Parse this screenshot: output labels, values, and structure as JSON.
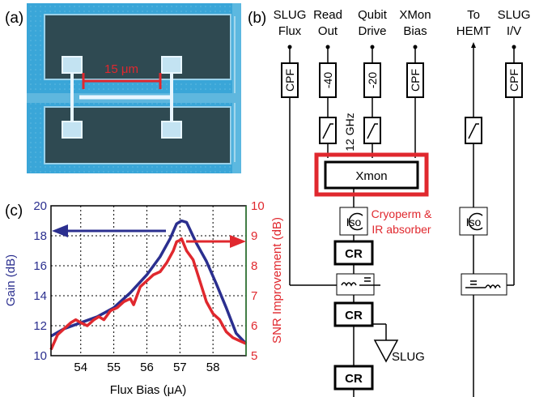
{
  "panels": {
    "a": {
      "label": "(a)",
      "scalebar": "15 μm"
    },
    "b": {
      "label": "(b)",
      "lines": [
        {
          "l1": "SLUG",
          "l2": "Flux",
          "comp": "CPF"
        },
        {
          "l1": "Read",
          "l2": "Out",
          "comp": "-40"
        },
        {
          "l1": "Qubit",
          "l2": "Drive",
          "comp": "-20"
        },
        {
          "l1": "XMon",
          "l2": "Bias",
          "comp": "CPF"
        },
        {
          "l1": "To",
          "l2": "HEMT",
          "comp": ""
        },
        {
          "l1": "SLUG",
          "l2": "I/V",
          "comp": "CPF"
        }
      ],
      "ghz": "12 GHz",
      "xmon": "Xmon",
      "iso": "Iso",
      "shield_l1": "Cryoperm &",
      "shield_l2": "IR absorber",
      "cr": "CR",
      "slug": "SLUG"
    },
    "c": {
      "label": "(c)"
    }
  },
  "colors": {
    "gain": "#2b2f8f",
    "snr": "#e0282e",
    "shield": "#e0282e",
    "chip_bg": "#3aa6d8",
    "chip_metal": "#2f4a52"
  },
  "chart_data": {
    "type": "line",
    "xlabel": "Flux Bias (μA)",
    "ylabel": "Gain (dB)",
    "y2label": "SNR Improvement (dB)",
    "xlim": [
      53.1,
      59.0
    ],
    "ylim": [
      10,
      20
    ],
    "y2lim": [
      5,
      10
    ],
    "xticks": [
      "54",
      "55",
      "56",
      "57",
      "58"
    ],
    "yticks": [
      "10",
      "12",
      "14",
      "16",
      "18",
      "20"
    ],
    "y2ticks": [
      "5",
      "6",
      "7",
      "8",
      "9",
      "10"
    ],
    "grid": true,
    "series": [
      {
        "axis": "left",
        "x": [
          53.1,
          53.5,
          54.0,
          54.5,
          55.0,
          55.5,
          56.0,
          56.4,
          56.7,
          56.9,
          57.05,
          57.2,
          57.5,
          57.8,
          58.1,
          58.4,
          58.7,
          59.0
        ],
        "y": [
          11.3,
          11.8,
          12.2,
          12.6,
          13.2,
          14.2,
          15.4,
          16.6,
          17.8,
          18.8,
          19.0,
          18.9,
          17.5,
          16.3,
          14.8,
          13.2,
          11.5,
          10.8
        ]
      },
      {
        "axis": "right",
        "x": [
          53.1,
          53.3,
          53.5,
          53.7,
          53.85,
          54.0,
          54.2,
          54.4,
          54.55,
          54.7,
          54.9,
          55.1,
          55.3,
          55.5,
          55.6,
          55.8,
          56.0,
          56.2,
          56.4,
          56.6,
          56.8,
          56.9,
          57.0,
          57.05,
          57.2,
          57.4,
          57.6,
          57.8,
          58.0,
          58.2,
          58.4,
          58.6,
          58.8,
          59.0
        ],
        "y": [
          5.2,
          5.7,
          5.9,
          6.1,
          6.2,
          6.1,
          6.0,
          6.2,
          6.3,
          6.2,
          6.5,
          6.6,
          6.8,
          6.9,
          6.7,
          7.3,
          7.5,
          7.7,
          7.8,
          8.1,
          8.5,
          8.8,
          8.85,
          8.9,
          8.5,
          8.2,
          7.5,
          6.8,
          6.4,
          6.2,
          5.8,
          5.6,
          5.5,
          5.4
        ]
      }
    ]
  }
}
